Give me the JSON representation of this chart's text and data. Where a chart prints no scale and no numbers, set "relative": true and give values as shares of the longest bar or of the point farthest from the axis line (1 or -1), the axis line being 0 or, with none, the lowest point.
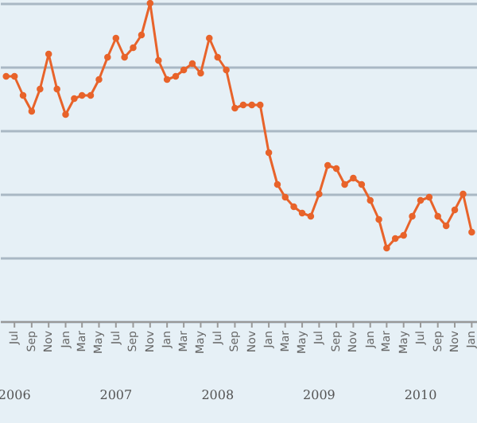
{
  "chart_data": {
    "type": "line",
    "relative": true,
    "x": [
      "2006-06",
      "2006-07",
      "2006-08",
      "2006-09",
      "2006-10",
      "2006-11",
      "2006-12",
      "2007-01",
      "2007-02",
      "2007-03",
      "2007-04",
      "2007-05",
      "2007-06",
      "2007-07",
      "2007-08",
      "2007-09",
      "2007-10",
      "2007-11",
      "2007-12",
      "2008-01",
      "2008-02",
      "2008-03",
      "2008-04",
      "2008-05",
      "2008-06",
      "2008-07",
      "2008-08",
      "2008-09",
      "2008-10",
      "2008-11",
      "2008-12",
      "2009-01",
      "2009-02",
      "2009-03",
      "2009-04",
      "2009-05",
      "2009-06",
      "2009-07",
      "2009-08",
      "2009-09",
      "2009-10",
      "2009-11",
      "2009-12",
      "2010-01",
      "2010-02",
      "2010-03",
      "2010-04",
      "2010-05",
      "2010-06",
      "2010-07",
      "2010-08",
      "2010-09",
      "2010-10",
      "2010-11",
      "2010-12",
      "2011-01"
    ],
    "series": [
      {
        "color": "#e8632a",
        "values": [
          0.77,
          0.77,
          0.71,
          0.66,
          0.73,
          0.84,
          0.73,
          0.65,
          0.7,
          0.71,
          0.71,
          0.76,
          0.83,
          0.89,
          0.83,
          0.86,
          0.9,
          1.0,
          0.82,
          0.76,
          0.77,
          0.79,
          0.81,
          0.78,
          0.89,
          0.83,
          0.79,
          0.67,
          0.68,
          0.68,
          0.68,
          0.53,
          0.43,
          0.39,
          0.36,
          0.34,
          0.33,
          0.4,
          0.49,
          0.48,
          0.43,
          0.45,
          0.43,
          0.38,
          0.32,
          0.23,
          0.26,
          0.27,
          0.33,
          0.38,
          0.39,
          0.33,
          0.3,
          0.35,
          0.4,
          0.28
        ]
      }
    ],
    "xlim": [
      "2006-05-10",
      "2011-01-20"
    ],
    "xticks": [
      {
        "value": "2006-07",
        "label": "Jul"
      },
      {
        "value": "2006-09",
        "label": "Sep"
      },
      {
        "value": "2006-11",
        "label": "Nov"
      },
      {
        "value": "2007-01",
        "label": "Jan"
      },
      {
        "value": "2007-03",
        "label": "Mar"
      },
      {
        "value": "2007-05",
        "label": "May"
      },
      {
        "value": "2007-07",
        "label": "Jul"
      },
      {
        "value": "2007-09",
        "label": "Sep"
      },
      {
        "value": "2007-11",
        "label": "Nov"
      },
      {
        "value": "2008-01",
        "label": "Jan"
      },
      {
        "value": "2008-03",
        "label": "Mar"
      },
      {
        "value": "2008-05",
        "label": "May"
      },
      {
        "value": "2008-07",
        "label": "Jul"
      },
      {
        "value": "2008-09",
        "label": "Sep"
      },
      {
        "value": "2008-11",
        "label": "Nov"
      },
      {
        "value": "2009-01",
        "label": "Jan"
      },
      {
        "value": "2009-03",
        "label": "Mar"
      },
      {
        "value": "2009-05",
        "label": "May"
      },
      {
        "value": "2009-07",
        "label": "Jul"
      },
      {
        "value": "2009-09",
        "label": "Sep"
      },
      {
        "value": "2009-11",
        "label": "Nov"
      },
      {
        "value": "2010-01",
        "label": "Jan"
      },
      {
        "value": "2010-03",
        "label": "Mar"
      },
      {
        "value": "2010-05",
        "label": "May"
      },
      {
        "value": "2010-07",
        "label": "Jul"
      },
      {
        "value": "2010-09",
        "label": "Sep"
      },
      {
        "value": "2010-11",
        "label": "Nov"
      },
      {
        "value": "2011-01",
        "label": "Jan"
      }
    ],
    "annotations": [
      "2006",
      "2007",
      "2008",
      "2009",
      "2010"
    ],
    "grid": "y",
    "marker": "circle",
    "line_style": "solid",
    "legend": false
  }
}
